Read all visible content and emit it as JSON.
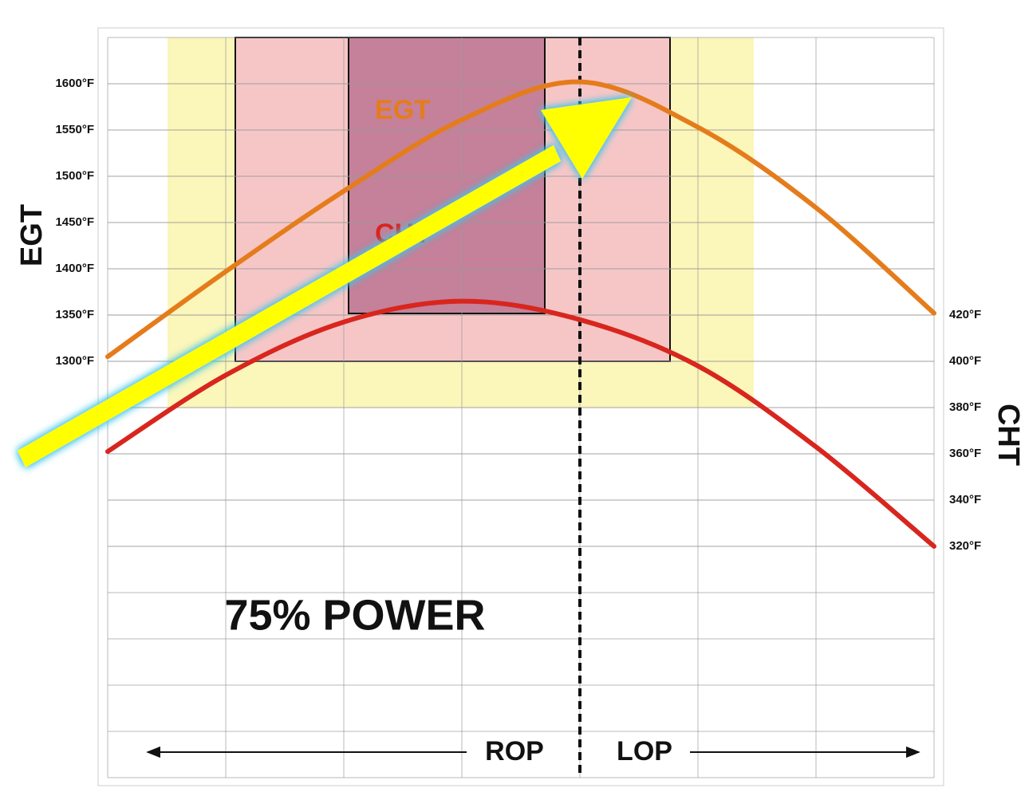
{
  "chart_data": {
    "type": "line",
    "title": "75% POWER",
    "y_label": "EGT",
    "y2_label": "CHT",
    "annotations": [
      "ROP",
      "LOP"
    ],
    "x": [
      0,
      1,
      2,
      3,
      4,
      5,
      6,
      7
    ],
    "xlim": [
      0,
      7
    ],
    "series": [
      {
        "name": "EGT",
        "color": "#e57c1c",
        "values": [
          1305,
          1397,
          1484,
          1561,
          1602,
          1553,
          1466,
          1352
        ]
      },
      {
        "name": "CHT",
        "color": "#d8261e",
        "values": [
          361,
          394,
          417,
          426,
          418,
          398,
          363,
          320
        ],
        "axis": "y2"
      }
    ],
    "ylim": [
      850,
      1650
    ],
    "yticks": [
      {
        "value": 1300,
        "label": "1300°F"
      },
      {
        "value": 1350,
        "label": "1350°F"
      },
      {
        "value": 1400,
        "label": "1400°F"
      },
      {
        "value": 1450,
        "label": "1450°F"
      },
      {
        "value": 1500,
        "label": "1500°F"
      },
      {
        "value": 1550,
        "label": "1550°F"
      },
      {
        "value": 1600,
        "label": "1600°F"
      }
    ],
    "y2lim": [
      220,
      540
    ],
    "y2ticks": [
      {
        "value": 320,
        "label": "320°F"
      },
      {
        "value": 340,
        "label": "340°F"
      },
      {
        "value": 360,
        "label": "360°F"
      },
      {
        "value": 380,
        "label": "380°F"
      },
      {
        "value": 400,
        "label": "400°F"
      },
      {
        "value": 420,
        "label": "420°F"
      }
    ],
    "grid": true
  }
}
